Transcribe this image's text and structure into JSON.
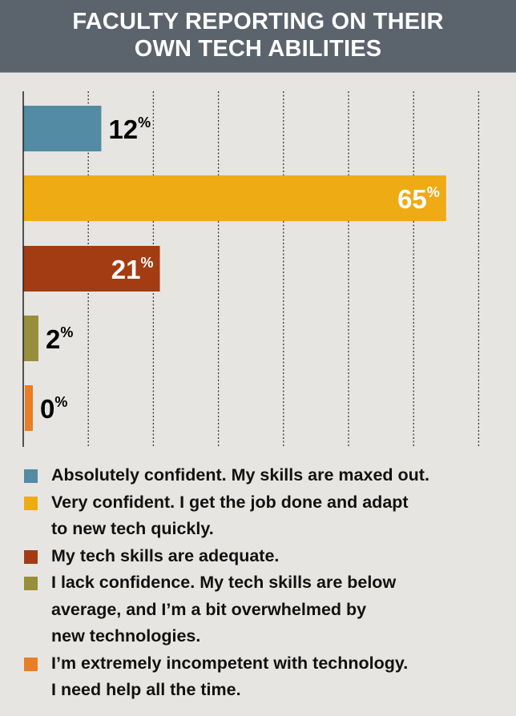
{
  "chart_data": {
    "type": "bar",
    "orientation": "horizontal",
    "title": "FACULTY REPORTING ON THEIR OWN TECH ABILITIES",
    "categories": [
      "Absolutely confident. My skills are maxed out.",
      "Very confident. I get the job done and adapt to new tech quickly.",
      "My tech skills are adequate.",
      "I lack confidence. My tech skills are below average, and I’m a bit overwhelmed by new technologies.",
      "I’m extremely incompetent with technology. I need help all the time."
    ],
    "values": [
      12,
      65,
      21,
      2,
      0
    ],
    "data_labels": [
      "12",
      "65",
      "21",
      "2",
      "0"
    ],
    "unit": "%",
    "colors": [
      "#528ba3",
      "#eeab14",
      "#a33c12",
      "#978f3b",
      "#e97e24"
    ],
    "label_colors": [
      "#000000",
      "#ffffff",
      "#ffffff",
      "#000000",
      "#000000"
    ],
    "xlim": [
      0,
      70
    ],
    "grid": "vertical dotted every 10%",
    "legend": "bottom"
  },
  "legend_lines": [
    "Absolutely confident. My skills are maxed out.",
    "Very confident. I get the job done and adapt\nto new tech quickly.",
    "My tech skills are adequate.",
    "I lack confidence. My tech skills are below\naverage, and I’m a bit overwhelmed by\nnew technologies.",
    "I’m extremely incompetent with technology.\nI need help all the time."
  ]
}
